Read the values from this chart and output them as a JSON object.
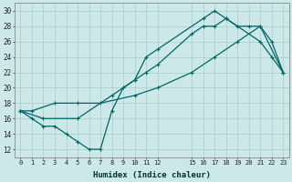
{
  "xlabel": "Humidex (Indice chaleur)",
  "bg_color": "#cce8e8",
  "grid_color": "#aacccc",
  "line_color": "#006666",
  "xlim": [
    -0.5,
    23.5
  ],
  "ylim": [
    11,
    31
  ],
  "xticks": [
    0,
    1,
    2,
    3,
    4,
    5,
    6,
    7,
    8,
    9,
    10,
    11,
    12,
    15,
    16,
    17,
    18,
    19,
    20,
    21,
    22,
    23
  ],
  "yticks": [
    12,
    14,
    16,
    18,
    20,
    22,
    24,
    26,
    28,
    30
  ],
  "series1_x": [
    0,
    1,
    2,
    3,
    4,
    5,
    6,
    7,
    8,
    9,
    10,
    11,
    12,
    16,
    17,
    18,
    21,
    22,
    23
  ],
  "series1_y": [
    17,
    16,
    15,
    15,
    14,
    13,
    12,
    12,
    17,
    20,
    21,
    24,
    25,
    29,
    30,
    29,
    26,
    24,
    22
  ],
  "series2_x": [
    0,
    2,
    5,
    8,
    10,
    11,
    12,
    15,
    16,
    17,
    18,
    19,
    20,
    21,
    22,
    23
  ],
  "series2_y": [
    17,
    16,
    16,
    19,
    21,
    22,
    23,
    27,
    28,
    28,
    29,
    28,
    28,
    28,
    26,
    22
  ],
  "series3_x": [
    0,
    1,
    3,
    5,
    7,
    10,
    12,
    15,
    17,
    19,
    21,
    23
  ],
  "series3_y": [
    17,
    17,
    18,
    18,
    18,
    19,
    20,
    22,
    24,
    26,
    28,
    22
  ]
}
